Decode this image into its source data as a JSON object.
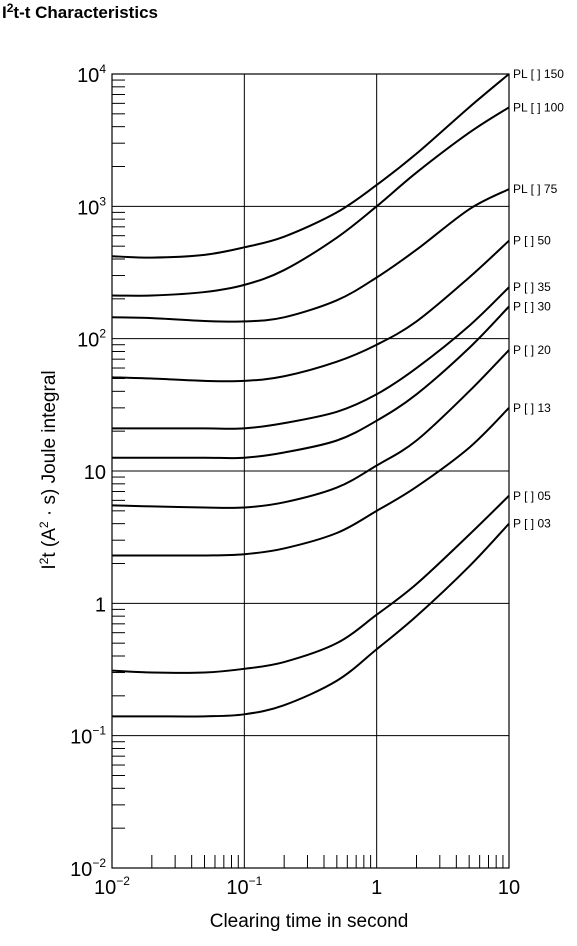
{
  "chart_data": {
    "type": "line",
    "title": {
      "prefix": "I",
      "sup": "2",
      "rest": "t-t Characteristics"
    },
    "xlabel": "Clearing time in second",
    "ylabel": {
      "a": "I",
      "a_sup": "2",
      "b": "t (A",
      "b_sup": "2",
      "c": " · s)  Joule integral"
    },
    "x_scale": "log",
    "y_scale": "log",
    "xlim": [
      0.01,
      10
    ],
    "ylim": [
      0.01,
      10000
    ],
    "grid": true,
    "x_ticks": [
      {
        "value": 0.01,
        "base": "10",
        "sup": "−2"
      },
      {
        "value": 0.1,
        "base": "10",
        "sup": "−1"
      },
      {
        "value": 1,
        "base": "1",
        "sup": ""
      },
      {
        "value": 10,
        "base": "10",
        "sup": ""
      }
    ],
    "y_ticks": [
      {
        "value": 0.01,
        "base": "10",
        "sup": "−2"
      },
      {
        "value": 0.1,
        "base": "10",
        "sup": "−1"
      },
      {
        "value": 1,
        "base": "1",
        "sup": ""
      },
      {
        "value": 10,
        "base": "10",
        "sup": ""
      },
      {
        "value": 100,
        "base": "10",
        "sup": "2"
      },
      {
        "value": 1000,
        "base": "10",
        "sup": "3"
      },
      {
        "value": 10000,
        "base": "10",
        "sup": "4"
      }
    ],
    "series": [
      {
        "name": "PL [ ] 150",
        "x": [
          0.01,
          0.02,
          0.05,
          0.1,
          0.2,
          0.5,
          1,
          2,
          5,
          10
        ],
        "y": [
          420,
          410,
          430,
          490,
          590,
          900,
          1450,
          2500,
          5600,
          10000
        ]
      },
      {
        "name": "PL [ ] 100",
        "x": [
          0.01,
          0.02,
          0.05,
          0.1,
          0.2,
          0.5,
          1,
          2,
          5,
          10
        ],
        "y": [
          212,
          212,
          225,
          255,
          330,
          580,
          1000,
          1800,
          3600,
          5600
        ]
      },
      {
        "name": "PL [ ] 75",
        "x": [
          0.01,
          0.02,
          0.05,
          0.1,
          0.2,
          0.5,
          1,
          2,
          5,
          10
        ],
        "y": [
          145,
          143,
          136,
          135,
          145,
          195,
          290,
          470,
          950,
          1350
        ]
      },
      {
        "name": "P [ ] 50",
        "x": [
          0.01,
          0.02,
          0.05,
          0.1,
          0.2,
          0.5,
          1,
          2,
          5,
          10
        ],
        "y": [
          51,
          50,
          48,
          48,
          52,
          67,
          90,
          135,
          290,
          550
        ]
      },
      {
        "name": "P [ ] 35",
        "x": [
          0.01,
          0.02,
          0.05,
          0.1,
          0.2,
          0.5,
          1,
          2,
          5,
          10
        ],
        "y": [
          21,
          21,
          21,
          21,
          23,
          28,
          38,
          60,
          125,
          245
        ]
      },
      {
        "name": "P [ ] 30",
        "x": [
          0.01,
          0.02,
          0.05,
          0.1,
          0.2,
          0.5,
          1,
          2,
          5,
          10
        ],
        "y": [
          12.6,
          12.6,
          12.6,
          12.6,
          13.8,
          17,
          24,
          38,
          85,
          175
        ]
      },
      {
        "name": "P [ ] 20",
        "x": [
          0.01,
          0.02,
          0.05,
          0.1,
          0.2,
          0.5,
          1,
          2,
          5,
          10
        ],
        "y": [
          5.5,
          5.4,
          5.3,
          5.3,
          5.8,
          7.5,
          11,
          17,
          40,
          82
        ]
      },
      {
        "name": "P [ ] 13",
        "x": [
          0.01,
          0.02,
          0.05,
          0.1,
          0.2,
          0.5,
          1,
          2,
          5,
          10
        ],
        "y": [
          2.3,
          2.3,
          2.3,
          2.35,
          2.6,
          3.4,
          5,
          7.6,
          15,
          30
        ]
      },
      {
        "name": "P [ ] 05",
        "x": [
          0.01,
          0.02,
          0.05,
          0.1,
          0.2,
          0.5,
          1,
          2,
          5,
          10
        ],
        "y": [
          0.31,
          0.3,
          0.3,
          0.32,
          0.36,
          0.5,
          0.82,
          1.4,
          3.3,
          6.5
        ]
      },
      {
        "name": "P [ ] 03",
        "x": [
          0.01,
          0.02,
          0.05,
          0.1,
          0.2,
          0.5,
          1,
          2,
          5,
          10
        ],
        "y": [
          0.14,
          0.14,
          0.14,
          0.145,
          0.17,
          0.26,
          0.45,
          0.8,
          1.9,
          4
        ]
      }
    ]
  }
}
